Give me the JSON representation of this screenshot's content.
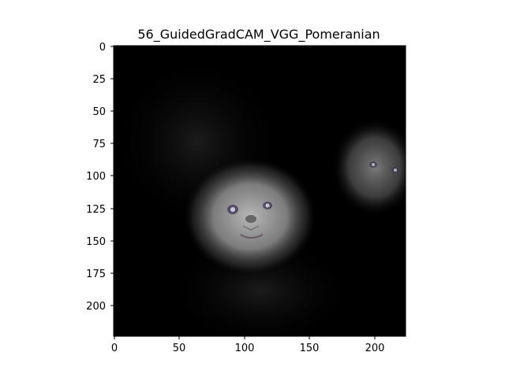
{
  "title": "56_GuidedGradCAM_VGG_Pomeranian",
  "axes": {
    "x_ticks": [
      "0",
      "50",
      "100",
      "150",
      "200"
    ],
    "y_ticks": [
      "0",
      "25",
      "50",
      "75",
      "100",
      "125",
      "150",
      "175",
      "200"
    ],
    "x_range": [
      0,
      224
    ],
    "y_range": [
      0,
      224
    ]
  },
  "image": {
    "content": "Guided Grad-CAM heatmap overlay; bright region around a Pomeranian face, a second partial face at right",
    "background": "#000000"
  }
}
